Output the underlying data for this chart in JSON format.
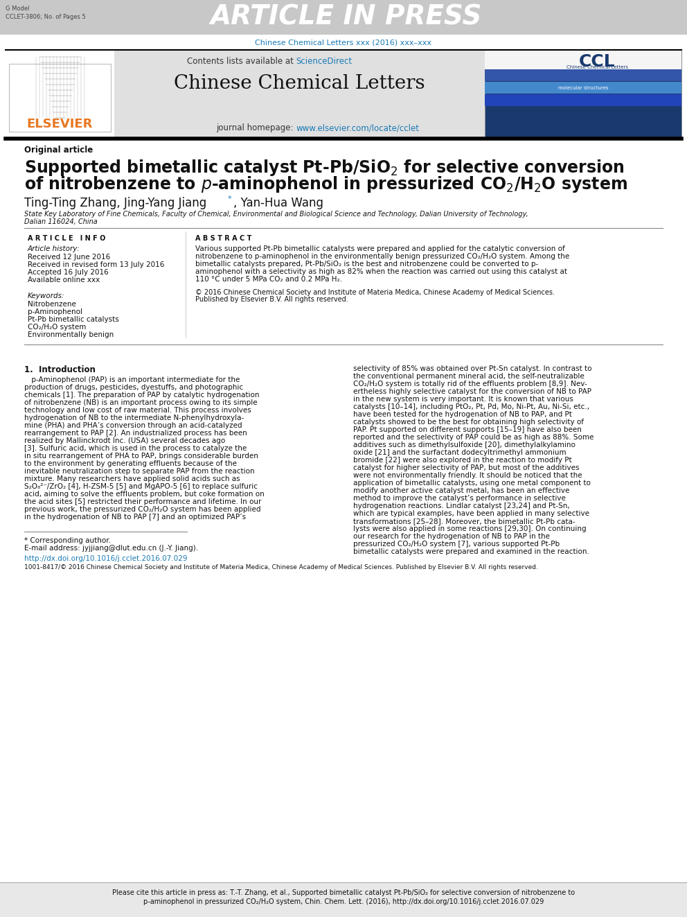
{
  "header_bg_color": "#c8c8c8",
  "header_text": "ARTICLE IN PRESS",
  "header_small_text_line1": "G Model",
  "header_small_text_line2": "CCLET-3806; No. of Pages 5",
  "journal_ref_text": "Chinese Chemical Letters xxx (2016) xxx–xxx",
  "journal_ref_color": "#1a7ab5",
  "journal_name": "Chinese Chemical Letters",
  "sciencedirect_color": "#1a7ab5",
  "homepage_url_color": "#1a7ab5",
  "elsevier_color": "#e87722",
  "original_article": "Original article",
  "authors_main": "Ting-Ting Zhang, Jing-Yang Jiang",
  "authors_star": "*",
  "authors_rest": ", Yan-Hua Wang",
  "affiliation_line1": "State Key Laboratory of Fine Chemicals, Faculty of Chemical, Environmental and Biological Science and Technology, Dalian University of Technology,",
  "affiliation_line2": "Dalian 116024, China",
  "article_info_header": "ARTICLE INFO",
  "article_history": "Article history:",
  "received": "Received 12 June 2016",
  "revised": "Received in revised form 13 July 2016",
  "accepted": "Accepted 16 July 2016",
  "available": "Available online xxx",
  "keywords_header": "Keywords:",
  "keywords": [
    "Nitrobenzene",
    "p-Aminophenol",
    "Pt-Pb bimetallic catalysts",
    "CO₂/H₂O system",
    "Environmentally benign"
  ],
  "abstract_header": "ABSTRACT",
  "abstract_lines": [
    "Various supported Pt-Pb bimetallic catalysts were prepared and applied for the catalytic conversion of",
    "nitrobenzene to p-aminophenol in the environmentally benign pressurized CO₂/H₂O system. Among the",
    "bimetallic catalysts prepared, Pt-Pb/SiO₂ is the best and nitrobenzene could be converted to p-",
    "aminophenol with a selectivity as high as 82% when the reaction was carried out using this catalyst at",
    "110 °C under 5 MPa CO₂ and 0.2 MPa H₂."
  ],
  "abstract_copyright_line1": "© 2016 Chinese Chemical Society and Institute of Materia Medica, Chinese Academy of Medical Sciences.",
  "abstract_copyright_line2": "Published by Elsevier B.V. All rights reserved.",
  "intro_header": "1.  Introduction",
  "left_col_lines": [
    " p-Aminophenol (PAP) is an important intermediate for the",
    "production of drugs, pesticides, dyestuffs, and photographic",
    "chemicals [1]. The preparation of PAP by catalytic hydrogenation",
    "of nitrobenzene (NB) is an important process owing to its simple",
    "technology and low cost of raw material. This process involves",
    "hydrogenation of NB to the intermediate N-phenylhydroxyla-",
    "mine (PHA) and PHA’s conversion through an acid-catalyzed",
    "rearrangement to PAP [2]. An industrialized process has been",
    "realized by Mallinckrodt Inc. (USA) several decades ago",
    "[3]. Sulfuric acid, which is used in the process to catalyze the",
    "in situ rearrangement of PHA to PAP, brings considerable burden",
    "to the environment by generating effluents because of the",
    "inevitable neutralization step to separate PAP from the reaction",
    "mixture. Many researchers have applied solid acids such as",
    "S₂O₈²⁻/ZrO₂ [4], H-ZSM-5 [5] and MgAPO-5 [6] to replace sulfuric",
    "acid, aiming to solve the effluents problem, but coke formation on",
    "the acid sites [5] restricted their performance and lifetime. In our",
    "previous work, the pressurized CO₂/H₂O system has been applied",
    "in the hydrogenation of NB to PAP [7] and an optimized PAP’s"
  ],
  "right_col_lines": [
    "selectivity of 85% was obtained over Pt-Sn catalyst. In contrast to",
    "the conventional permanent mineral acid, the self-neutralizable",
    "CO₂/H₂O system is totally rid of the effluents problem [8,9]. Nev-",
    "ertheless highly selective catalyst for the conversion of NB to PAP",
    "in the new system is very important. It is known that various",
    "catalysts [10–14], including PtO₂, Pt, Pd, Mo, Ni-Pt, Au, Ni-Si, etc.,",
    "have been tested for the hydrogenation of NB to PAP, and Pt",
    "catalysts showed to be the best for obtaining high selectivity of",
    "PAP. Pt supported on different supports [15–19] have also been",
    "reported and the selectivity of PAP could be as high as 88%. Some",
    "additives such as dimethylsulfoxide [20], dimethylalkylamino",
    "oxide [21] and the surfactant dodecyltrimethyl ammonium",
    "bromide [22] were also explored in the reaction to modify Pt",
    "catalyst for higher selectivity of PAP, but most of the additives",
    "were not environmentally friendly. It should be noticed that the",
    "application of bimetallic catalysts, using one metal component to",
    "modify another active catalyst metal, has been an effective",
    "method to improve the catalyst’s performance in selective",
    "hydrogenation reactions. Lindlar catalyst [23,24] and Pt-Sn,",
    "which are typical examples, have been applied in many selective",
    "transformations [25–28]. Moreover, the bimetallic Pt-Pb cata-",
    "lysts were also applied in some reactions [29,30]. On continuing",
    "our research for the hydrogenation of NB to PAP in the",
    "pressurized CO₂/H₂O system [7], various supported Pt-Pb",
    "bimetallic catalysts were prepared and examined in the reaction."
  ],
  "footnote_star": "* Corresponding author.",
  "footnote_email": "E-mail address: jyjjiang@dlut.edu.cn (J.-Y. Jiang).",
  "doi_text": "http://dx.doi.org/10.1016/j.cclet.2016.07.029",
  "issn_text": "1001-8417/© 2016 Chinese Chemical Society and Institute of Materia Medica, Chinese Academy of Medical Sciences. Published by Elsevier B.V. All rights reserved.",
  "cite_line1": "Please cite this article in press as: T.-T. Zhang, et al., Supported bimetallic catalyst Pt-Pb/SiO₂ for selective conversion of nitrobenzene to",
  "cite_line2": "p-aminophenol in pressurized CO₂/H₂O system, Chin. Chem. Lett. (2016), http://dx.doi.org/10.1016/j.cclet.2016.07.029",
  "bg_color": "#ffffff"
}
